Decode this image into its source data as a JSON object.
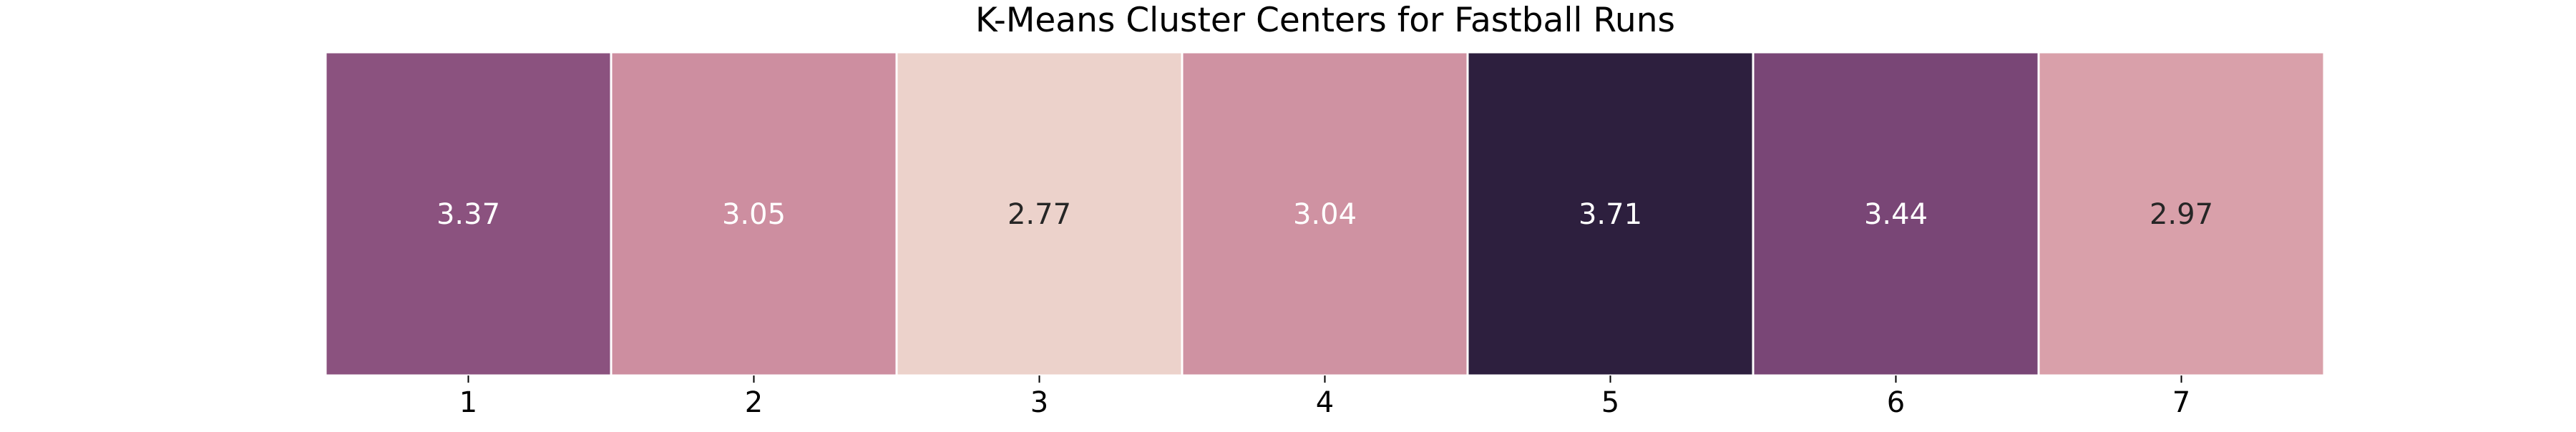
{
  "chart_data": {
    "type": "heatmap",
    "title": "K-Means Cluster Centers for Fastball Runs",
    "xlabel": "",
    "ylabel": "",
    "categories": [
      "1",
      "2",
      "3",
      "4",
      "5",
      "6",
      "7"
    ],
    "values": [
      3.37,
      3.05,
      2.77,
      3.04,
      3.71,
      3.44,
      2.97
    ],
    "value_labels": [
      "3.37",
      "3.05",
      "2.77",
      "3.04",
      "3.71",
      "3.44",
      "2.97"
    ],
    "cell_colors": [
      "#8b527f",
      "#cd8ea0",
      "#ecd2cb",
      "#cf92a2",
      "#2d1f3e",
      "#794676",
      "#d9a0aa"
    ],
    "label_colors": [
      "#ffffff",
      "#ffffff",
      "#262626",
      "#ffffff",
      "#ffffff",
      "#ffffff",
      "#262626"
    ],
    "colorbar": false,
    "y_ticks": false,
    "grid": false
  }
}
